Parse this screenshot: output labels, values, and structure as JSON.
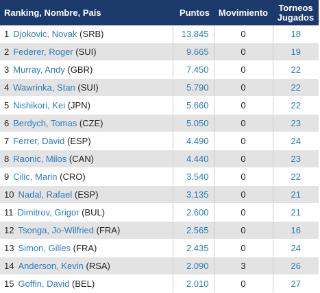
{
  "table": {
    "headers": {
      "name": "Ranking, Nombre, País",
      "points": "Puntos",
      "movement": "Movimiento",
      "tournaments_line1": "Torneos",
      "tournaments_line2": "Jugados"
    },
    "rows": [
      {
        "rank": "1",
        "name": "Djokovic, Novak",
        "country": "(SRB)",
        "points": "13.845",
        "movement": "0",
        "tournaments": "18"
      },
      {
        "rank": "2",
        "name": "Federer, Roger",
        "country": "(SUI)",
        "points": "9.665",
        "movement": "0",
        "tournaments": "19"
      },
      {
        "rank": "3",
        "name": "Murray, Andy",
        "country": "(GBR)",
        "points": "7.450",
        "movement": "0",
        "tournaments": "22"
      },
      {
        "rank": "4",
        "name": "Wawrinka, Stan",
        "country": "(SUI)",
        "points": "5.790",
        "movement": "0",
        "tournaments": "22"
      },
      {
        "rank": "5",
        "name": "Nishikori, Kei",
        "country": "(JPN)",
        "points": "5.660",
        "movement": "0",
        "tournaments": "22"
      },
      {
        "rank": "6",
        "name": "Berdych, Tomas",
        "country": "(CZE)",
        "points": "5.050",
        "movement": "0",
        "tournaments": "23"
      },
      {
        "rank": "7",
        "name": "Ferrer, David",
        "country": "(ESP)",
        "points": "4.490",
        "movement": "0",
        "tournaments": "24"
      },
      {
        "rank": "8",
        "name": "Raonic, Milos",
        "country": "(CAN)",
        "points": "4.440",
        "movement": "0",
        "tournaments": "23"
      },
      {
        "rank": "9",
        "name": "Cilic, Marin",
        "country": "(CRO)",
        "points": "3.540",
        "movement": "0",
        "tournaments": "22"
      },
      {
        "rank": "10",
        "name": "Nadal, Rafael",
        "country": "(ESP)",
        "points": "3.135",
        "movement": "0",
        "tournaments": "21"
      },
      {
        "rank": "11",
        "name": "Dimitrov, Grigor",
        "country": "(BUL)",
        "points": "2.600",
        "movement": "0",
        "tournaments": "21"
      },
      {
        "rank": "12",
        "name": "Tsonga, Jo-Wilfried",
        "country": "(FRA)",
        "points": "2.565",
        "movement": "0",
        "tournaments": "16"
      },
      {
        "rank": "13",
        "name": "Simon, Gilles",
        "country": "(FRA)",
        "points": "2.435",
        "movement": "0",
        "tournaments": "24"
      },
      {
        "rank": "14",
        "name": "Anderson, Kevin",
        "country": "(RSA)",
        "points": "2.090",
        "movement": "3",
        "tournaments": "26"
      },
      {
        "rank": "15",
        "name": "Goffin, David",
        "country": "(BEL)",
        "points": "2.010",
        "movement": "0",
        "tournaments": "27"
      }
    ]
  },
  "colors": {
    "header_bg": "#1b3a6b",
    "link": "#2b7bbf",
    "stripe": "#e3e3e3"
  }
}
